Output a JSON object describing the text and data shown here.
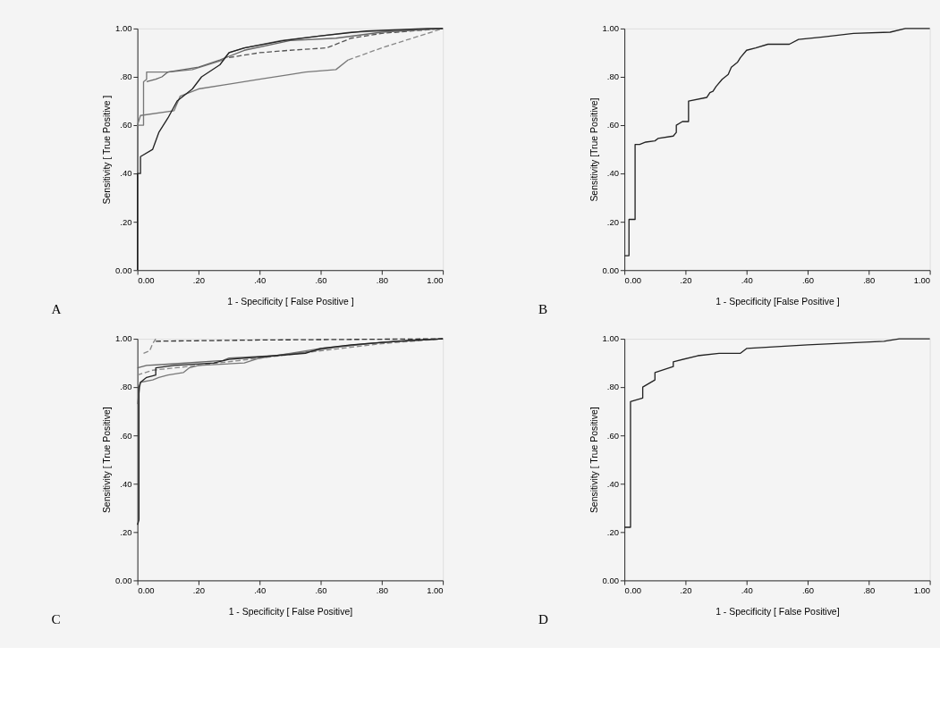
{
  "chart_data": [
    {
      "type": "line",
      "xlabel": "1 - Specificity  [ False Positive ]",
      "ylabel": "Sensitivity [ True Positive ]",
      "annotations": [
        "A"
      ],
      "xlim": [
        0,
        1
      ],
      "ylim": [
        0,
        1
      ],
      "xticks": [
        {
          "value": 0,
          "label": "0.00"
        },
        {
          "value": 0.2,
          "label": ".20"
        },
        {
          "value": 0.4,
          "label": ".40"
        },
        {
          "value": 0.6,
          "label": ".60"
        },
        {
          "value": 0.8,
          "label": ".80"
        },
        {
          "value": 1,
          "label": "1.00"
        }
      ],
      "yticks": [
        {
          "value": 0,
          "label": "0.00"
        },
        {
          "value": 0.2,
          "label": ".20"
        },
        {
          "value": 0.4,
          "label": ".40"
        },
        {
          "value": 0.6,
          "label": ".60"
        },
        {
          "value": 0.8,
          "label": ".80"
        },
        {
          "value": 1,
          "label": "1.00"
        }
      ],
      "grid": false,
      "series": [
        {
          "color": "#777777",
          "line_style": "solid",
          "x": [
            0,
            0,
            0.01,
            0.12,
            0.14,
            0.2,
            0.3,
            0.4,
            0.5,
            0.55,
            0.65,
            0.69
          ],
          "values": [
            0,
            0.6,
            0.64,
            0.66,
            0.72,
            0.75,
            0.77,
            0.79,
            0.81,
            0.82,
            0.83,
            0.87
          ]
        },
        {
          "color": "#888888",
          "line_style": "dashed",
          "x": [
            0.69,
            0.8,
            0.9,
            1
          ],
          "values": [
            0.87,
            0.92,
            0.96,
            1
          ]
        },
        {
          "color": "#555555",
          "line_style": "dashed",
          "x": [
            0.3,
            0.4,
            0.5,
            0.62,
            0.7,
            0.8,
            1
          ],
          "values": [
            0.88,
            0.9,
            0.91,
            0.92,
            0.96,
            0.98,
            1
          ]
        },
        {
          "color": "#777777",
          "line_style": "solid",
          "x": [
            0,
            0,
            0.02,
            0.02,
            0.03,
            0.03,
            0.1,
            0.18,
            0.28,
            0.3,
            0.35,
            0.47,
            0.6,
            0.7,
            0.9,
            1
          ],
          "values": [
            0,
            0.6,
            0.6,
            0.78,
            0.79,
            0.82,
            0.82,
            0.83,
            0.87,
            0.9,
            0.92,
            0.95,
            0.97,
            0.985,
            0.995,
            1
          ]
        },
        {
          "color": "#666666",
          "line_style": "solid",
          "x": [
            0.03,
            0.06,
            0.08,
            0.1,
            0.2,
            0.27,
            0.35,
            0.5,
            0.65,
            0.8,
            1
          ],
          "values": [
            0.78,
            0.79,
            0.8,
            0.82,
            0.84,
            0.87,
            0.91,
            0.95,
            0.96,
            0.985,
            1
          ]
        },
        {
          "color": "#222222",
          "line_style": "solid",
          "x": [
            0,
            0,
            0.01,
            0.01,
            0.05,
            0.07,
            0.1,
            0.13,
            0.18,
            0.21,
            0.27,
            0.3,
            0.35,
            0.48,
            0.6,
            0.75,
            0.95,
            1
          ],
          "values": [
            0,
            0.4,
            0.4,
            0.47,
            0.5,
            0.57,
            0.63,
            0.7,
            0.75,
            0.8,
            0.85,
            0.9,
            0.92,
            0.95,
            0.97,
            0.99,
            1,
            1
          ]
        }
      ]
    },
    {
      "type": "line",
      "xlabel": "1 - Specificity [False Positive ]",
      "ylabel": "Sensitivity [True Positive]",
      "annotations": [
        "B"
      ],
      "xlim": [
        0,
        1
      ],
      "ylim": [
        0,
        1
      ],
      "xticks": [
        {
          "value": 0,
          "label": "0.00"
        },
        {
          "value": 0.2,
          "label": ".20"
        },
        {
          "value": 0.4,
          "label": ".40"
        },
        {
          "value": 0.6,
          "label": ".60"
        },
        {
          "value": 0.8,
          "label": ".80"
        },
        {
          "value": 1,
          "label": "1.00"
        }
      ],
      "yticks": [
        {
          "value": 0,
          "label": "0.00"
        },
        {
          "value": 0.2,
          "label": ".20"
        },
        {
          "value": 0.4,
          "label": ".40"
        },
        {
          "value": 0.6,
          "label": ".60"
        },
        {
          "value": 0.8,
          "label": ".80"
        },
        {
          "value": 1,
          "label": "1.00"
        }
      ],
      "grid": false,
      "series": [
        {
          "color": "#222222",
          "line_style": "solid",
          "x": [
            0,
            0.015,
            0.015,
            0.035,
            0.035,
            0.05,
            0.07,
            0.1,
            0.11,
            0.16,
            0.17,
            0.17,
            0.19,
            0.21,
            0.21,
            0.27,
            0.28,
            0.29,
            0.3,
            0.32,
            0.34,
            0.35,
            0.37,
            0.38,
            0.4,
            0.43,
            0.47,
            0.54,
            0.57,
            0.65,
            0.75,
            0.87,
            0.92,
            1
          ],
          "values": [
            0.06,
            0.06,
            0.21,
            0.21,
            0.52,
            0.52,
            0.53,
            0.535,
            0.545,
            0.555,
            0.57,
            0.6,
            0.615,
            0.615,
            0.7,
            0.715,
            0.735,
            0.74,
            0.76,
            0.79,
            0.81,
            0.84,
            0.86,
            0.88,
            0.91,
            0.92,
            0.935,
            0.935,
            0.955,
            0.965,
            0.98,
            0.985,
            1,
            1
          ]
        }
      ]
    },
    {
      "type": "line",
      "xlabel": "1 - Specificity  [ False Positive]",
      "ylabel": "Sensitivity  [ True Positive]",
      "annotations": [
        "C"
      ],
      "xlim": [
        0,
        1
      ],
      "ylim": [
        0,
        1
      ],
      "xticks": [
        {
          "value": 0,
          "label": "0.00"
        },
        {
          "value": 0.2,
          "label": ".20"
        },
        {
          "value": 0.4,
          "label": ".40"
        },
        {
          "value": 0.6,
          "label": ".60"
        },
        {
          "value": 0.8,
          "label": ".80"
        },
        {
          "value": 1,
          "label": "1.00"
        }
      ],
      "yticks": [
        {
          "value": 0,
          "label": "0.00"
        },
        {
          "value": 0.2,
          "label": ".20"
        },
        {
          "value": 0.4,
          "label": ".40"
        },
        {
          "value": 0.6,
          "label": ".60"
        },
        {
          "value": 0.8,
          "label": ".80"
        },
        {
          "value": 1,
          "label": "1.00"
        }
      ],
      "grid": false,
      "series": [
        {
          "color": "#888888",
          "line_style": "dashed",
          "x": [
            0,
            0.05,
            0.2,
            0.4,
            0.6,
            0.8,
            1
          ],
          "values": [
            0.85,
            0.87,
            0.89,
            0.92,
            0.95,
            0.98,
            1
          ]
        },
        {
          "color": "#777777",
          "line_style": "solid",
          "x": [
            0,
            0.01,
            0.05,
            0.07,
            0.1,
            0.15,
            0.17,
            0.2,
            0.35,
            0.4,
            0.5,
            0.6,
            0.75,
            0.9,
            1
          ],
          "values": [
            0.73,
            0.82,
            0.83,
            0.84,
            0.85,
            0.86,
            0.88,
            0.89,
            0.9,
            0.92,
            0.94,
            0.96,
            0.98,
            0.995,
            1
          ]
        },
        {
          "color": "#666666",
          "line_style": "solid",
          "x": [
            0,
            0.03,
            0.1,
            0.28,
            0.3,
            0.45,
            0.55,
            0.65,
            0.8,
            1
          ],
          "values": [
            0.88,
            0.89,
            0.895,
            0.91,
            0.92,
            0.93,
            0.945,
            0.965,
            0.985,
            1
          ]
        },
        {
          "color": "#888888",
          "line_style": "dashed",
          "x": [
            0.02,
            0.04,
            0.05,
            0.06
          ],
          "values": [
            0.94,
            0.95,
            0.98,
            1
          ]
        },
        {
          "color": "#333333",
          "line_style": "dashed",
          "x": [
            0.06,
            0.4,
            1
          ],
          "values": [
            0.99,
            0.995,
            1
          ]
        },
        {
          "color": "#222222",
          "line_style": "solid",
          "x": [
            0,
            0.005,
            0.005,
            0.01,
            0.03,
            0.06,
            0.06,
            0.12,
            0.25,
            0.3,
            0.45,
            0.55,
            0.6,
            0.7,
            0.85,
            1
          ],
          "values": [
            0.23,
            0.25,
            0.8,
            0.82,
            0.84,
            0.85,
            0.88,
            0.89,
            0.9,
            0.915,
            0.93,
            0.94,
            0.96,
            0.975,
            0.99,
            1
          ]
        }
      ]
    },
    {
      "type": "line",
      "xlabel": "1 - Specificity  [ False Positive]",
      "ylabel": "Sensitivity  [ True Positive]",
      "annotations": [
        "D"
      ],
      "xlim": [
        0,
        1
      ],
      "ylim": [
        0,
        1
      ],
      "xticks": [
        {
          "value": 0,
          "label": "0.00"
        },
        {
          "value": 0.2,
          "label": ".20"
        },
        {
          "value": 0.4,
          "label": ".40"
        },
        {
          "value": 0.6,
          "label": ".60"
        },
        {
          "value": 0.8,
          "label": ".80"
        },
        {
          "value": 1,
          "label": "1.00"
        }
      ],
      "yticks": [
        {
          "value": 0,
          "label": "0.00"
        },
        {
          "value": 0.2,
          "label": ".20"
        },
        {
          "value": 0.4,
          "label": ".40"
        },
        {
          "value": 0.6,
          "label": ".60"
        },
        {
          "value": 0.8,
          "label": ".80"
        },
        {
          "value": 1,
          "label": "1.00"
        }
      ],
      "grid": false,
      "series": [
        {
          "color": "#222222",
          "line_style": "solid",
          "x": [
            0,
            0.02,
            0.02,
            0.06,
            0.06,
            0.1,
            0.1,
            0.16,
            0.16,
            0.24,
            0.31,
            0.38,
            0.4,
            0.6,
            0.85,
            0.9,
            1
          ],
          "values": [
            0.22,
            0.22,
            0.74,
            0.755,
            0.8,
            0.83,
            0.86,
            0.885,
            0.905,
            0.93,
            0.94,
            0.94,
            0.96,
            0.975,
            0.99,
            1,
            1
          ]
        }
      ]
    }
  ]
}
